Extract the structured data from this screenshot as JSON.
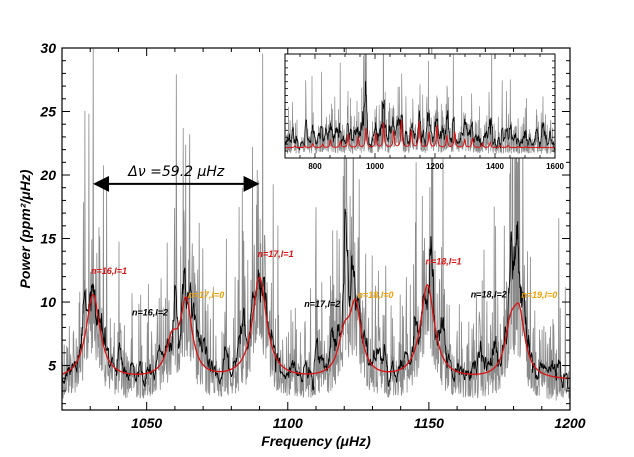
{
  "chart_data": [
    {
      "type": "line",
      "xlabel": "Frequency (μHz)",
      "ylabel": "Power (ppm²/μHz)",
      "xlim": [
        1020,
        1200
      ],
      "ylim": [
        1.5,
        30
      ],
      "x_ticks": [
        1050,
        1100,
        1150,
        1200
      ],
      "y_ticks": [
        5,
        10,
        15,
        20,
        25,
        30
      ],
      "colors": {
        "raw": "#808080",
        "smoothed": "#000000",
        "fit": "#dd1111",
        "l1_label": "#dd1111",
        "l0_label": "#f0a000",
        "l2_label": "#000000"
      },
      "background_level": 3.8,
      "series": [
        {
          "name": "",
          "style": "raw spectrum (grey)"
        },
        {
          "name": "",
          "style": "smoothed spectrum (black)"
        },
        {
          "name": "",
          "style": "fitted model (red)"
        }
      ],
      "modes": [
        {
          "label": "n=16,l=1",
          "freq": 1031,
          "height": 6.7,
          "width": 3.0,
          "l": 1
        },
        {
          "label": "n=16,l=2",
          "freq": 1059,
          "height": 2.6,
          "width": 2.5,
          "l": 2
        },
        {
          "label": "n=17,l=0",
          "freq": 1064,
          "height": 5.9,
          "width": 2.5,
          "l": 0
        },
        {
          "label": "n=17,l=1",
          "freq": 1090,
          "height": 8.0,
          "width": 3.0,
          "l": 1
        },
        {
          "label": "n=17,l=2",
          "freq": 1120,
          "height": 2.9,
          "width": 2.5,
          "l": 2
        },
        {
          "label": "n=18,l=0",
          "freq": 1124,
          "height": 5.4,
          "width": 2.5,
          "l": 0
        },
        {
          "label": "n=18,l=1",
          "freq": 1149.5,
          "height": 7.4,
          "width": 3.0,
          "l": 1
        },
        {
          "label": "n=18,l=2",
          "freq": 1179,
          "height": 3.4,
          "width": 2.5,
          "l": 2
        },
        {
          "label": "n=19,l=0",
          "freq": 1182,
          "height": 4.5,
          "width": 2.5,
          "l": 0
        }
      ],
      "annotation": {
        "text": "Δν =59.2 μHz",
        "from": 1031,
        "to": 1090,
        "y": 19.3
      }
    },
    {
      "type": "line",
      "xlim": [
        700,
        1600
      ],
      "ylim": [
        0,
        30
      ],
      "x_ticks": [
        800,
        1000,
        1200,
        1400,
        1600
      ],
      "envelope_center": 1100,
      "envelope_width": 220,
      "large_separation": 59.2,
      "first_peak": 733
    }
  ]
}
